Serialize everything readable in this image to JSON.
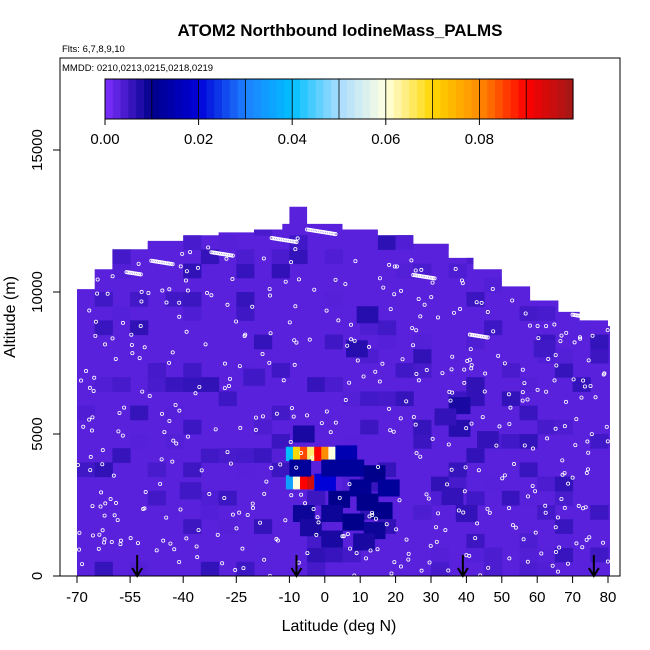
{
  "chart_data": {
    "type": "heatmap",
    "title": "ATOM2 Northbound IodineMass_PALMS",
    "flights_label": "Flts: 6,7,8,9,10",
    "dates_label": "MMDD: 0210,0213,0215,0218,0219",
    "xlabel": "Latitude (deg N)",
    "ylabel": "Altitude (m)",
    "xlim": [
      -70,
      85
    ],
    "ylim": [
      0,
      17500
    ],
    "x_ticks": [
      -70,
      -55,
      -40,
      -25,
      -10,
      0,
      10,
      20,
      30,
      40,
      50,
      60,
      70,
      80
    ],
    "y_ticks": [
      0,
      5000,
      10000,
      15000
    ],
    "colorbar": {
      "range": [
        0,
        0.1
      ],
      "ticks": [
        0.0,
        0.02,
        0.04,
        0.06,
        0.08
      ],
      "tick_labels": [
        "0.00",
        "0.02",
        "0.04",
        "0.06",
        "0.08"
      ],
      "colors": [
        "#7f2fff",
        "#00008b",
        "#0000d8",
        "#1e7fff",
        "#00bfff",
        "#a8dcff",
        "#ffffe0",
        "#ffd700",
        "#ff8c00",
        "#ff0000",
        "#a01818"
      ]
    },
    "background_value": 0.003,
    "profile_top_altitudes": [
      {
        "lat": -70,
        "alt": 10100
      },
      {
        "lat": -65,
        "alt": 10800
      },
      {
        "lat": -60,
        "alt": 11500
      },
      {
        "lat": -50,
        "alt": 11800
      },
      {
        "lat": -40,
        "alt": 12000
      },
      {
        "lat": -30,
        "alt": 12100
      },
      {
        "lat": -20,
        "alt": 12200
      },
      {
        "lat": -12,
        "alt": 12400
      },
      {
        "lat": -10,
        "alt": 13000
      },
      {
        "lat": -5,
        "alt": 12400
      },
      {
        "lat": 5,
        "alt": 12200
      },
      {
        "lat": 15,
        "alt": 12000
      },
      {
        "lat": 25,
        "alt": 11700
      },
      {
        "lat": 35,
        "alt": 11200
      },
      {
        "lat": 42,
        "alt": 10800
      },
      {
        "lat": 50,
        "alt": 10200
      },
      {
        "lat": 58,
        "alt": 9700
      },
      {
        "lat": 66,
        "alt": 9300
      },
      {
        "lat": 72,
        "alt": 9000
      },
      {
        "lat": 80,
        "alt": 8800
      }
    ],
    "enhanced_cells": [
      {
        "lat": -10,
        "alt": 4300,
        "value": 0.04
      },
      {
        "lat": -8,
        "alt": 4300,
        "value": 0.07
      },
      {
        "lat": -6,
        "alt": 4300,
        "value": 0.085
      },
      {
        "lat": -4,
        "alt": 4300,
        "value": 0.065
      },
      {
        "lat": -2,
        "alt": 4300,
        "value": 0.09
      },
      {
        "lat": 0,
        "alt": 4300,
        "value": 0.08
      },
      {
        "lat": 2,
        "alt": 4300,
        "value": 0.06
      },
      {
        "lat": 4,
        "alt": 4300,
        "value": 0.035
      },
      {
        "lat": 6,
        "alt": 4300,
        "value": 0.015
      },
      {
        "lat": -10,
        "alt": 3300,
        "value": 0.035
      },
      {
        "lat": -8,
        "alt": 3300,
        "value": 0.06
      },
      {
        "lat": -6,
        "alt": 3300,
        "value": 0.09
      },
      {
        "lat": -4,
        "alt": 3300,
        "value": 0.095
      },
      {
        "lat": -2,
        "alt": 3300,
        "value": 0.05
      },
      {
        "lat": 0,
        "alt": 3300,
        "value": 0.02
      },
      {
        "lat": -7,
        "alt": 3800,
        "value": 0.012
      },
      {
        "lat": 2,
        "alt": 3800,
        "value": 0.012
      },
      {
        "lat": 8,
        "alt": 3800,
        "value": 0.012
      },
      {
        "lat": 14,
        "alt": 3600,
        "value": 0.01
      },
      {
        "lat": 18,
        "alt": 3100,
        "value": 0.012
      },
      {
        "lat": 10,
        "alt": 3100,
        "value": 0.011
      },
      {
        "lat": 4,
        "alt": 2700,
        "value": 0.01
      },
      {
        "lat": 12,
        "alt": 2600,
        "value": 0.01
      },
      {
        "lat": 16,
        "alt": 2300,
        "value": 0.01
      },
      {
        "lat": -6,
        "alt": 2200,
        "value": 0.009
      },
      {
        "lat": 2,
        "alt": 2200,
        "value": 0.009
      },
      {
        "lat": 8,
        "alt": 1900,
        "value": 0.01
      },
      {
        "lat": 14,
        "alt": 1600,
        "value": 0.009
      },
      {
        "lat": -4,
        "alt": 1700,
        "value": 0.008
      },
      {
        "lat": 2,
        "alt": 1300,
        "value": 0.008
      },
      {
        "lat": 11,
        "alt": 1200,
        "value": 0.008
      },
      {
        "lat": -6,
        "alt": 5000,
        "value": 0.008
      },
      {
        "lat": 9,
        "alt": 8000,
        "value": 0.007
      },
      {
        "lat": 12,
        "alt": 9200,
        "value": 0.007
      },
      {
        "lat": 38,
        "alt": 6000,
        "value": 0.008
      },
      {
        "lat": 38,
        "alt": 5200,
        "value": 0.007
      },
      {
        "lat": 34,
        "alt": 5600,
        "value": 0.006
      },
      {
        "lat": 46,
        "alt": 4800,
        "value": 0.006
      },
      {
        "lat": 40,
        "alt": 2200,
        "value": 0.006
      },
      {
        "lat": 36,
        "alt": 2800,
        "value": 0.006
      },
      {
        "lat": 62,
        "alt": 8000,
        "value": 0.005
      },
      {
        "lat": -38,
        "alt": 3000,
        "value": 0.005
      },
      {
        "lat": -20,
        "alt": 7000,
        "value": 0.005
      }
    ],
    "arrow_latitudes": [
      -53,
      -8,
      39,
      76
    ]
  }
}
